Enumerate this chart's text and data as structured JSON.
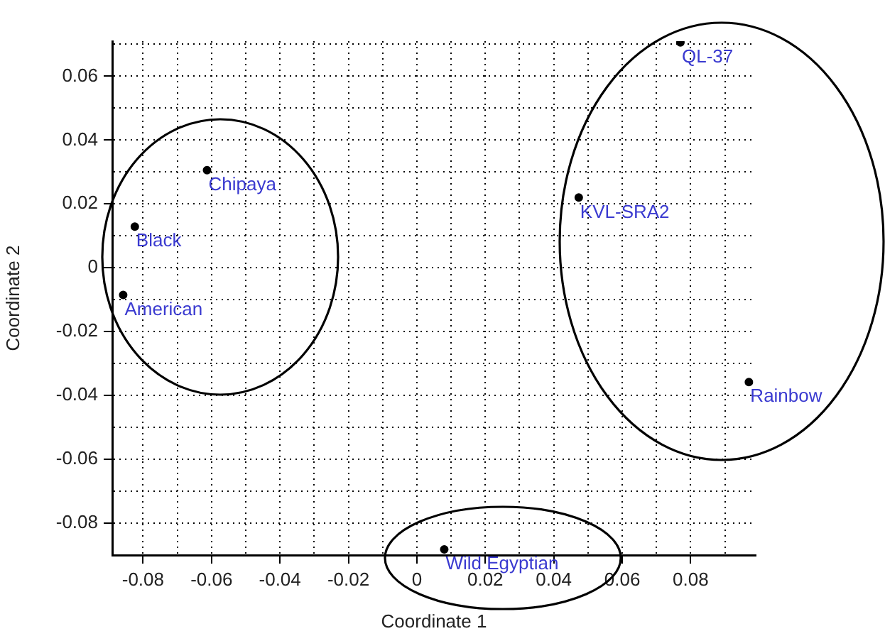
{
  "chart_data": {
    "type": "scatter",
    "xlabel": "Coordinate 1",
    "ylabel": "Coordinate 2",
    "x": [
      -0.0613,
      -0.0824,
      -0.0858,
      0.077,
      0.0473,
      0.097,
      0.008
    ],
    "series": [
      {
        "color": "#000000",
        "values": [
          0.0306,
          0.0129,
          -0.0085,
          0.0706,
          0.022,
          -0.0358,
          -0.0882
        ],
        "value_labels": [
          "Chipaya",
          "Black",
          "American",
          "QL-37",
          "KVL-SRA2",
          "Rainbow",
          "Wild Egyptian"
        ]
      }
    ],
    "xlim": [
      -0.089,
      0.099
    ],
    "ylim": [
      -0.09,
      0.071
    ],
    "xticks": [
      {
        "value": -0.08,
        "label": "-0.08"
      },
      {
        "value": -0.07,
        "label": null
      },
      {
        "value": -0.06,
        "label": "-0.06"
      },
      {
        "value": -0.05,
        "label": null
      },
      {
        "value": -0.04,
        "label": "-0.04"
      },
      {
        "value": -0.03,
        "label": null
      },
      {
        "value": -0.02,
        "label": "-0.02"
      },
      {
        "value": -0.01,
        "label": null
      },
      0,
      {
        "value": 0.01,
        "label": null
      },
      {
        "value": 0.02,
        "label": "0.02"
      },
      {
        "value": 0.03,
        "label": null
      },
      {
        "value": 0.04,
        "label": "0.04"
      },
      {
        "value": 0.05,
        "label": null
      },
      {
        "value": 0.06,
        "label": "0.06"
      },
      {
        "value": 0.07,
        "label": null
      },
      {
        "value": 0.08,
        "label": "0.08"
      },
      {
        "value": 0.09,
        "label": null
      }
    ],
    "yticks": [
      {
        "value": -0.08,
        "label": "-0.08"
      },
      {
        "value": -0.07,
        "label": null
      },
      {
        "value": -0.06,
        "label": "-0.06"
      },
      {
        "value": -0.05,
        "label": null
      },
      {
        "value": -0.04,
        "label": "-0.04"
      },
      {
        "value": -0.03,
        "label": null
      },
      {
        "value": -0.02,
        "label": "-0.02"
      },
      {
        "value": -0.01,
        "label": null
      },
      0,
      {
        "value": 0.01,
        "label": null
      },
      {
        "value": 0.02,
        "label": "0.02"
      },
      {
        "value": 0.03,
        "label": null
      },
      {
        "value": 0.04,
        "label": "0.04"
      },
      {
        "value": 0.05,
        "label": null
      },
      {
        "value": 0.06,
        "label": "0.06"
      },
      {
        "value": 0.07,
        "label": null
      }
    ],
    "grid": true,
    "marker": "circle",
    "legend": false
  }
}
